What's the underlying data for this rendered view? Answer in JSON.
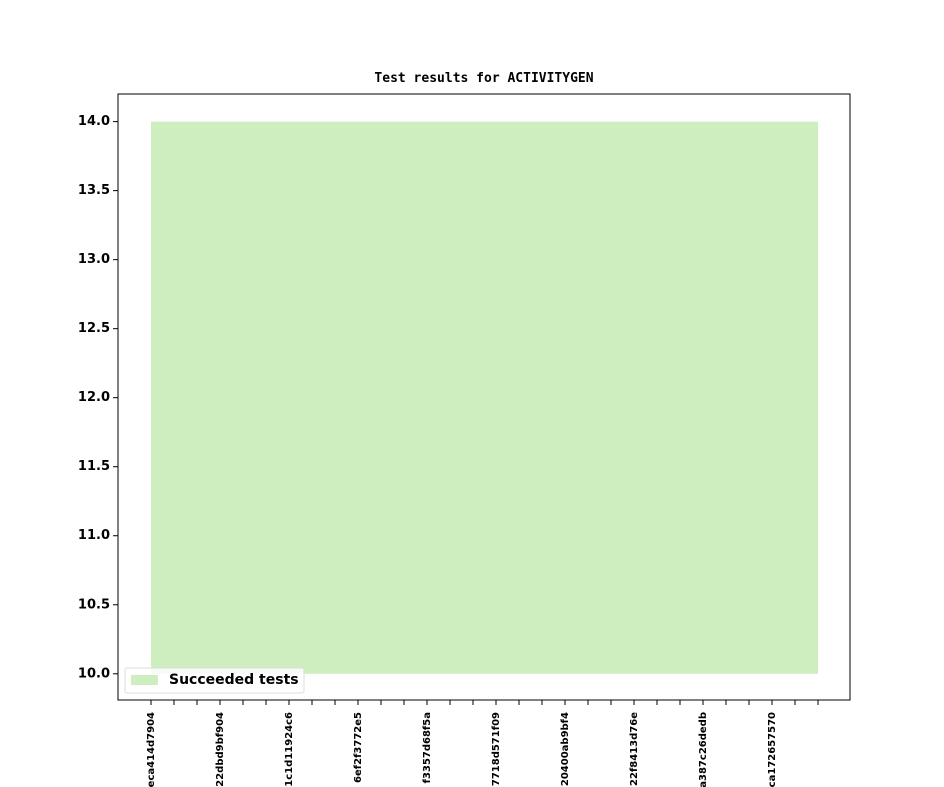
{
  "chart_data": {
    "type": "area",
    "title": "Test results for ACTIVITYGEN",
    "categories": [
      "eca414d7904",
      null,
      null,
      "22dbd9bf904",
      null,
      null,
      "1c1d11924c6",
      null,
      null,
      "6ef2f3772e5",
      null,
      null,
      "f3357d68f5a",
      null,
      null,
      "7718d571f09",
      null,
      null,
      "20400ab9bf4",
      null,
      null,
      "22f8413d76e",
      null,
      null,
      "a387c26dedb",
      null,
      null,
      "ca172657570",
      null,
      null
    ],
    "series": [
      {
        "name": "Succeeded tests",
        "color": "#ceeec0",
        "values": [
          14,
          14,
          14,
          14,
          14,
          14,
          14,
          14,
          14,
          14,
          14,
          14,
          14,
          14,
          14,
          14,
          14,
          14,
          14,
          14,
          14,
          14,
          14,
          14,
          14,
          14,
          14,
          14,
          14,
          14
        ]
      }
    ],
    "ylim": [
      9.81,
      14.2
    ],
    "yticks": [
      {
        "value": 10,
        "label": "10.0"
      },
      {
        "value": 10.5,
        "label": "10.5"
      },
      {
        "value": 11,
        "label": "11.0"
      },
      {
        "value": 11.5,
        "label": "11.5"
      },
      {
        "value": 12,
        "label": "12.0"
      },
      {
        "value": 12.5,
        "label": "12.5"
      },
      {
        "value": 13,
        "label": "13.0"
      },
      {
        "value": 13.5,
        "label": "13.5"
      },
      {
        "value": 14,
        "label": "14.0"
      }
    ],
    "legend": "lower left"
  }
}
